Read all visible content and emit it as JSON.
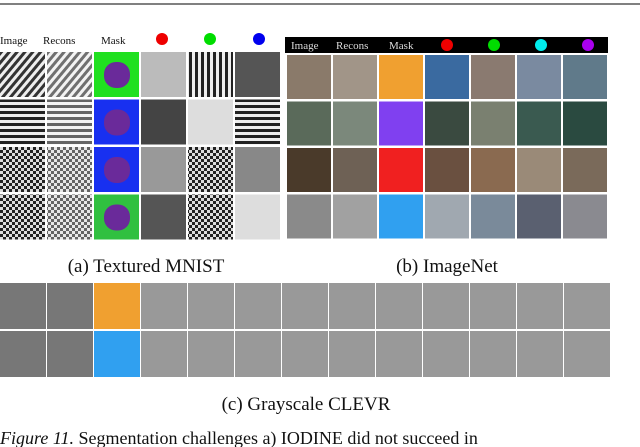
{
  "panels": [
    {
      "headers": [
        "Image",
        "Recons",
        "Mask"
      ],
      "label": "(a) Textured MNIST"
    },
    {
      "headers": [
        "Image",
        "Recons",
        "Mask"
      ],
      "label": "(b) ImageNet"
    },
    {
      "label": "(c) Grayscale CLEVR"
    }
  ],
  "caption": {
    "label": "Figure 11.",
    "text": "Segmentation challenges a) IODINE did not succeed in"
  }
}
